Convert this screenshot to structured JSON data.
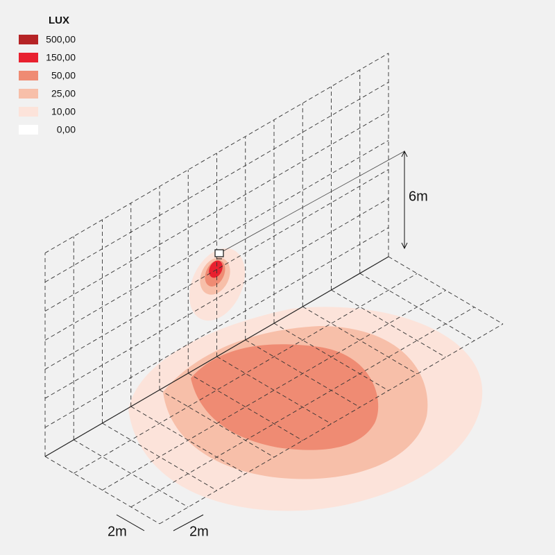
{
  "legend": {
    "title": "LUX",
    "items": [
      {
        "label": "500,00",
        "color": "#b52325"
      },
      {
        "label": "150,00",
        "color": "#e8212f"
      },
      {
        "label": "50,00",
        "color": "#ef8b73"
      },
      {
        "label": "25,00",
        "color": "#f7bfa9"
      },
      {
        "label": "10,00",
        "color": "#fce3da"
      },
      {
        "label": "0,00",
        "color": "#ffffff"
      }
    ]
  },
  "dimensions": {
    "height": "6m",
    "grid_x": "2m",
    "grid_y": "2m"
  }
}
